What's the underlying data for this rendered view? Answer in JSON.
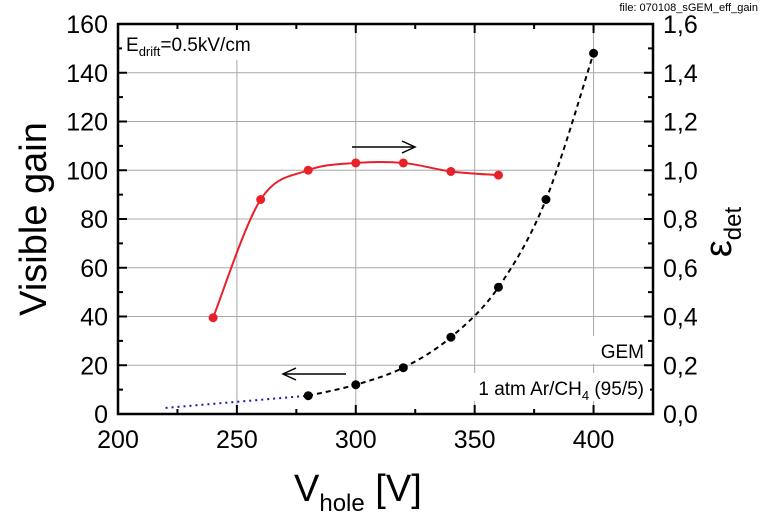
{
  "header": {
    "file_note": "file: 070108_sGEM_eff_gain"
  },
  "chart_data": {
    "type": "scatter",
    "xlabel": {
      "main": "V",
      "sub": "hole",
      "suffix": " [V]"
    },
    "ylabel_left": "Visible gain",
    "ylabel_right": {
      "main": "ε",
      "sub": "det"
    },
    "xlim": [
      200,
      425
    ],
    "ylim_left": [
      0,
      160
    ],
    "ylim_right": [
      0.0,
      1.6
    ],
    "x_ticks": [
      "200",
      "250",
      "300",
      "350",
      "400"
    ],
    "y_ticks_left": [
      "0",
      "20",
      "40",
      "60",
      "80",
      "100",
      "120",
      "140",
      "160"
    ],
    "y_ticks_right": [
      "0,0",
      "0,2",
      "0,4",
      "0,6",
      "0,8",
      "1,0",
      "1,2",
      "1,4",
      "1,6"
    ],
    "grid": true,
    "series": [
      {
        "axis": "left",
        "color": "#000000",
        "marker": "circle",
        "line": "dashed",
        "x": [
          280,
          300,
          320,
          340,
          360,
          380,
          400
        ],
        "y": [
          7.5,
          12,
          19,
          31.5,
          52,
          88,
          148
        ],
        "extrapolation": {
          "color": "#1a1aa8",
          "line": "dotted",
          "x": [
            220,
            280
          ],
          "y": [
            2.5,
            7.5
          ]
        }
      },
      {
        "axis": "right",
        "color": "#e8202a",
        "marker": "circle",
        "line": "solid",
        "x": [
          240,
          260,
          280,
          300,
          320,
          340,
          360
        ],
        "y": [
          0.395,
          0.88,
          1.0,
          1.03,
          1.03,
          0.995,
          0.98
        ]
      }
    ],
    "annotations": {
      "field": {
        "main": "E",
        "sub": "drift",
        "suffix": "=0.5kV/cm"
      },
      "detector": "GEM",
      "gas": {
        "prefix": "1 atm Ar/CH",
        "sub": "4",
        "suffix": " (95/5)"
      }
    }
  }
}
